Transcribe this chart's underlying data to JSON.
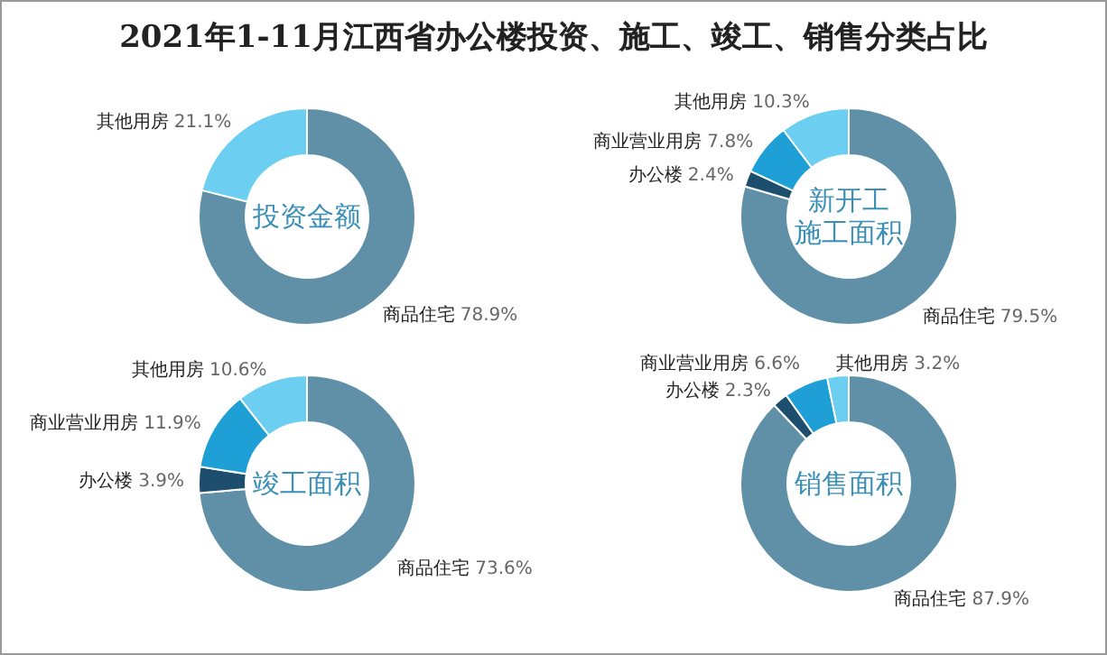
{
  "chart_data": [
    {
      "type": "donut",
      "title": "投资金额",
      "annotations": [
        "2021年1-11月江西省办公楼投资、施工、竣工、销售分类占比"
      ],
      "categories": [
        "商品住宅",
        "其他用房"
      ],
      "values": [
        78.9,
        21.1
      ],
      "colors": [
        "#5f90a8",
        "#6ccff2"
      ],
      "value_labels": [
        "78.9%",
        "21.1%"
      ]
    },
    {
      "type": "donut",
      "title": "新开工施工面积",
      "categories": [
        "商品住宅",
        "办公楼",
        "商业营业用房",
        "其他用房"
      ],
      "values": [
        79.5,
        2.4,
        7.8,
        10.3
      ],
      "colors": [
        "#5f90a8",
        "#1d4e6e",
        "#1ea0d6",
        "#6ccff2"
      ],
      "value_labels": [
        "79.5%",
        "2.4%",
        "7.8%",
        "10.3%"
      ]
    },
    {
      "type": "donut",
      "title": "竣工面积",
      "categories": [
        "商品住宅",
        "办公楼",
        "商业营业用房",
        "其他用房"
      ],
      "values": [
        73.6,
        3.9,
        11.9,
        10.6
      ],
      "colors": [
        "#5f90a8",
        "#1d4e6e",
        "#1ea0d6",
        "#6ccff2"
      ],
      "value_labels": [
        "73.6%",
        "3.9%",
        "11.9%",
        "10.6%"
      ]
    },
    {
      "type": "donut",
      "title": "销售面积",
      "categories": [
        "商品住宅",
        "办公楼",
        "商业营业用房",
        "其他用房"
      ],
      "values": [
        87.9,
        2.3,
        6.6,
        3.2
      ],
      "colors": [
        "#5f90a8",
        "#1d4e6e",
        "#1ea0d6",
        "#6ccff2"
      ],
      "value_labels": [
        "87.9%",
        "2.3%",
        "6.6%",
        "3.2%"
      ]
    }
  ]
}
